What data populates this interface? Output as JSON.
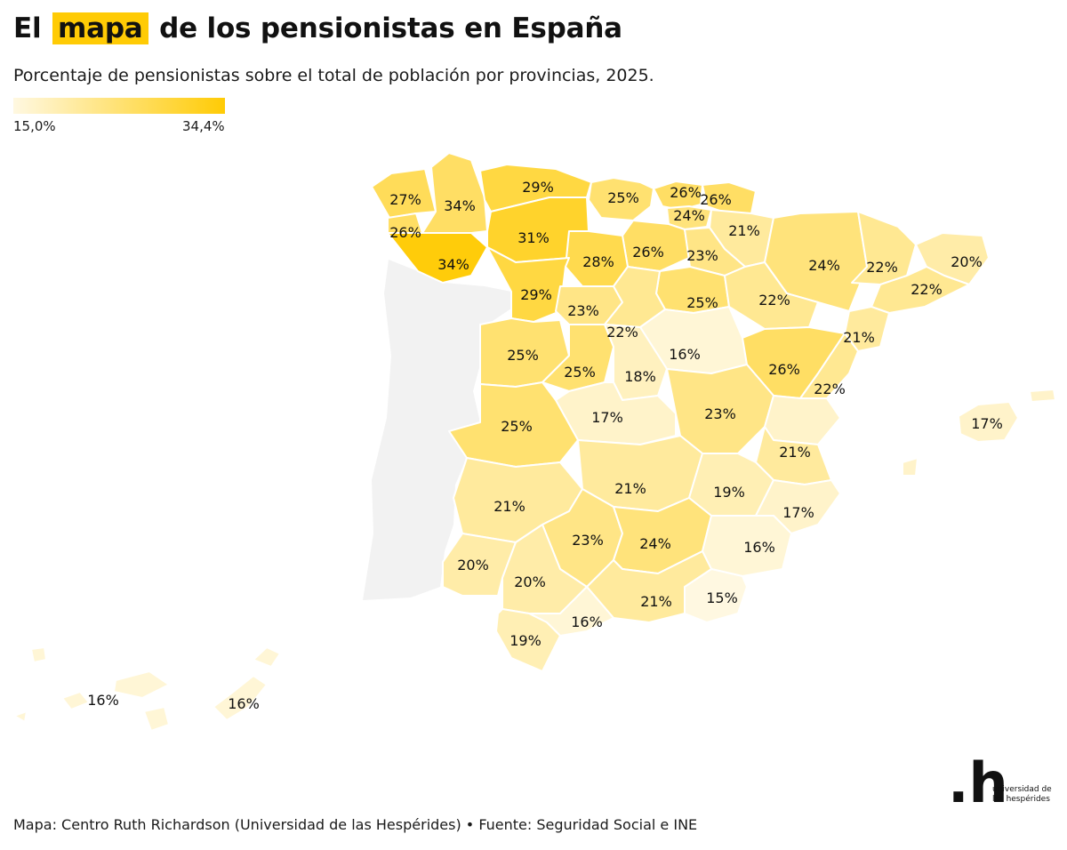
{
  "header": {
    "title_before": "El",
    "title_highlight": "mapa",
    "title_after": "de los pensionistas en España",
    "subtitle": "Porcentaje de pensionistas sobre el total de población por provincias, 2025."
  },
  "legend": {
    "min_label": "15,0%",
    "max_label": "34,4%",
    "min_value": 15.0,
    "max_value": 34.4,
    "color_low": "#fff8e1",
    "color_high": "#ffcb05"
  },
  "colors": {
    "highlight": "#ffcb05",
    "border": "#ffffff",
    "portugal": "#f2f2f2"
  },
  "provinces": [
    {
      "label": "27%",
      "value": 27
    },
    {
      "label": "34%",
      "value": 34
    },
    {
      "label": "29%",
      "value": 29
    },
    {
      "label": "25%",
      "value": 25
    },
    {
      "label": "26%",
      "value": 26
    },
    {
      "label": "26%",
      "value": 26
    },
    {
      "label": "24%",
      "value": 24
    },
    {
      "label": "26%",
      "value": 26
    },
    {
      "label": "31%",
      "value": 31
    },
    {
      "label": "21%",
      "value": 21
    },
    {
      "label": "34%",
      "value": 34
    },
    {
      "label": "26%",
      "value": 26
    },
    {
      "label": "28%",
      "value": 28
    },
    {
      "label": "23%",
      "value": 23
    },
    {
      "label": "24%",
      "value": 24
    },
    {
      "label": "22%",
      "value": 22
    },
    {
      "label": "20%",
      "value": 20
    },
    {
      "label": "29%",
      "value": 29
    },
    {
      "label": "25%",
      "value": 25
    },
    {
      "label": "22%",
      "value": 22
    },
    {
      "label": "22%",
      "value": 22
    },
    {
      "label": "23%",
      "value": 23
    },
    {
      "label": "22%",
      "value": 22
    },
    {
      "label": "21%",
      "value": 21
    },
    {
      "label": "25%",
      "value": 25
    },
    {
      "label": "16%",
      "value": 16
    },
    {
      "label": "25%",
      "value": 25
    },
    {
      "label": "18%",
      "value": 18
    },
    {
      "label": "26%",
      "value": 26
    },
    {
      "label": "22%",
      "value": 22
    },
    {
      "label": "17%",
      "value": 17
    },
    {
      "label": "25%",
      "value": 25
    },
    {
      "label": "23%",
      "value": 23
    },
    {
      "label": "17%",
      "value": 17
    },
    {
      "label": "21%",
      "value": 21
    },
    {
      "label": "21%",
      "value": 21
    },
    {
      "label": "19%",
      "value": 19
    },
    {
      "label": "21%",
      "value": 21
    },
    {
      "label": "17%",
      "value": 17
    },
    {
      "label": "23%",
      "value": 23
    },
    {
      "label": "24%",
      "value": 24
    },
    {
      "label": "16%",
      "value": 16
    },
    {
      "label": "20%",
      "value": 20
    },
    {
      "label": "20%",
      "value": 20
    },
    {
      "label": "15%",
      "value": 15
    },
    {
      "label": "21%",
      "value": 21
    },
    {
      "label": "16%",
      "value": 16
    },
    {
      "label": "19%",
      "value": 19
    },
    {
      "label": "16%",
      "value": 16
    },
    {
      "label": "16%",
      "value": 16
    }
  ],
  "footer": {
    "source": "Mapa: Centro Ruth Richardson (Universidad de las Hespérides) • Fuente: Seguridad Social e INE",
    "logo_mark": ".h",
    "logo_text": "universidad de las hespérides"
  }
}
